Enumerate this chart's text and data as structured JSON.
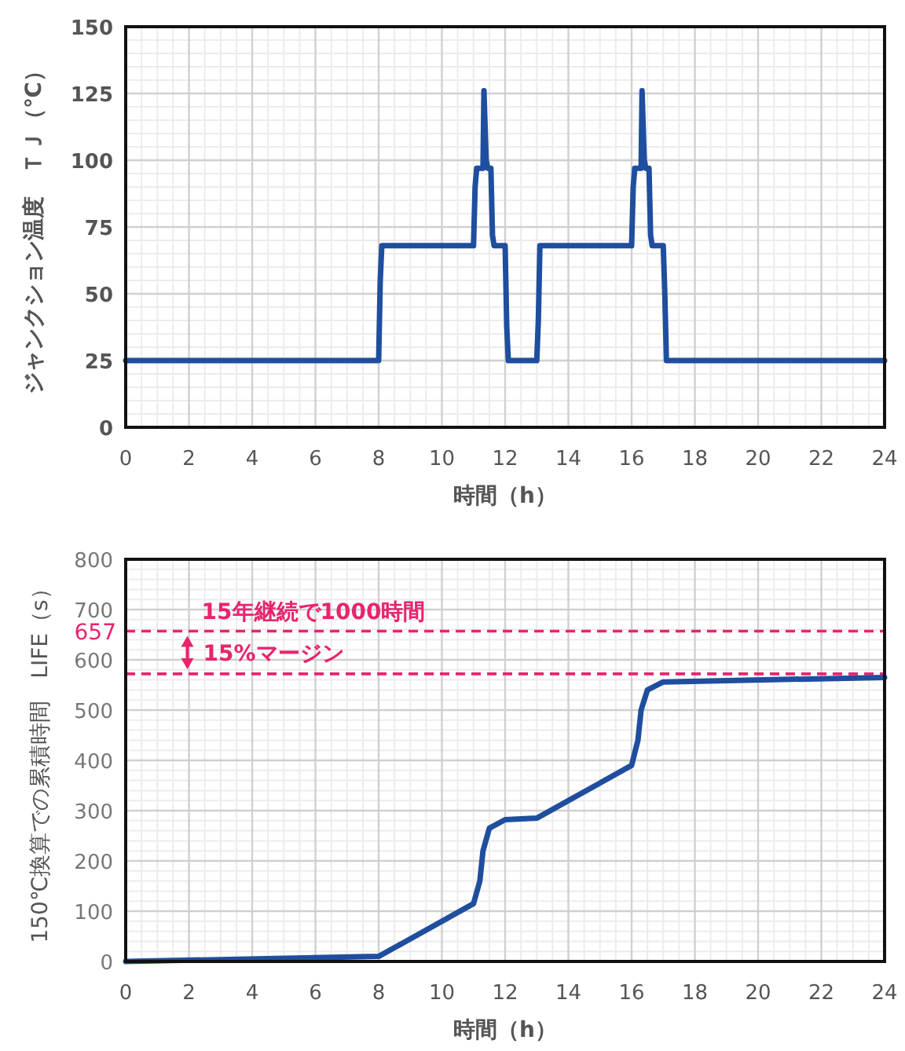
{
  "chart_data": [
    {
      "type": "line",
      "xlabel": "時間（h）",
      "ylabel": "ジャンクション温度　ＴＪ（℃）",
      "xlim": [
        0,
        24
      ],
      "xticks": [
        0,
        2,
        4,
        6,
        8,
        10,
        12,
        14,
        16,
        18,
        20,
        22,
        24
      ],
      "ylim": [
        0,
        150
      ],
      "yticks": [
        0,
        25,
        50,
        75,
        100,
        125,
        150
      ],
      "grid": true,
      "series": [
        {
          "color": "#1f4e9e",
          "x": [
            0,
            8,
            8.05,
            8.1,
            11,
            11.05,
            11.1,
            11.3,
            11.33,
            11.4,
            11.45,
            11.55,
            11.6,
            11.65,
            12,
            12.05,
            12.1,
            13,
            13.05,
            13.1,
            16,
            16.05,
            16.1,
            16.3,
            16.33,
            16.4,
            16.45,
            16.55,
            16.6,
            16.65,
            17,
            17.05,
            17.1,
            24
          ],
          "values": [
            25,
            25,
            55,
            68,
            68,
            90,
            97,
            97,
            126,
            100,
            97,
            97,
            72,
            68,
            68,
            38,
            25,
            25,
            40,
            68,
            68,
            90,
            97,
            97,
            126,
            100,
            97,
            97,
            72,
            68,
            68,
            50,
            25,
            25
          ]
        }
      ]
    },
    {
      "type": "line",
      "xlabel": "時間（h）",
      "ylabel": "150℃換算での累積時間　LIFE（s）",
      "xlim": [
        0,
        24
      ],
      "xticks": [
        0,
        2,
        4,
        6,
        8,
        10,
        12,
        14,
        16,
        18,
        20,
        22,
        24
      ],
      "ylim": [
        0,
        800
      ],
      "yticks": [
        0,
        100,
        200,
        300,
        400,
        500,
        600,
        700,
        800
      ],
      "grid": true,
      "series": [
        {
          "color": "#1f4e9e",
          "x": [
            0,
            8,
            11,
            11.2,
            11.3,
            11.5,
            12,
            13,
            16,
            16.2,
            16.3,
            16.5,
            17,
            24
          ],
          "values": [
            0,
            10,
            115,
            160,
            220,
            265,
            282,
            285,
            390,
            440,
            500,
            540,
            556,
            565
          ]
        }
      ],
      "ref_lines": [
        {
          "axis": "y",
          "value": 657,
          "label": "657",
          "color": "#e8246e",
          "line_style": "dashed"
        },
        {
          "axis": "y",
          "value": 572,
          "color": "#e8246e",
          "line_style": "dashed"
        }
      ],
      "annotations": [
        "15年継続で1000時間",
        "15%マージン"
      ]
    }
  ]
}
